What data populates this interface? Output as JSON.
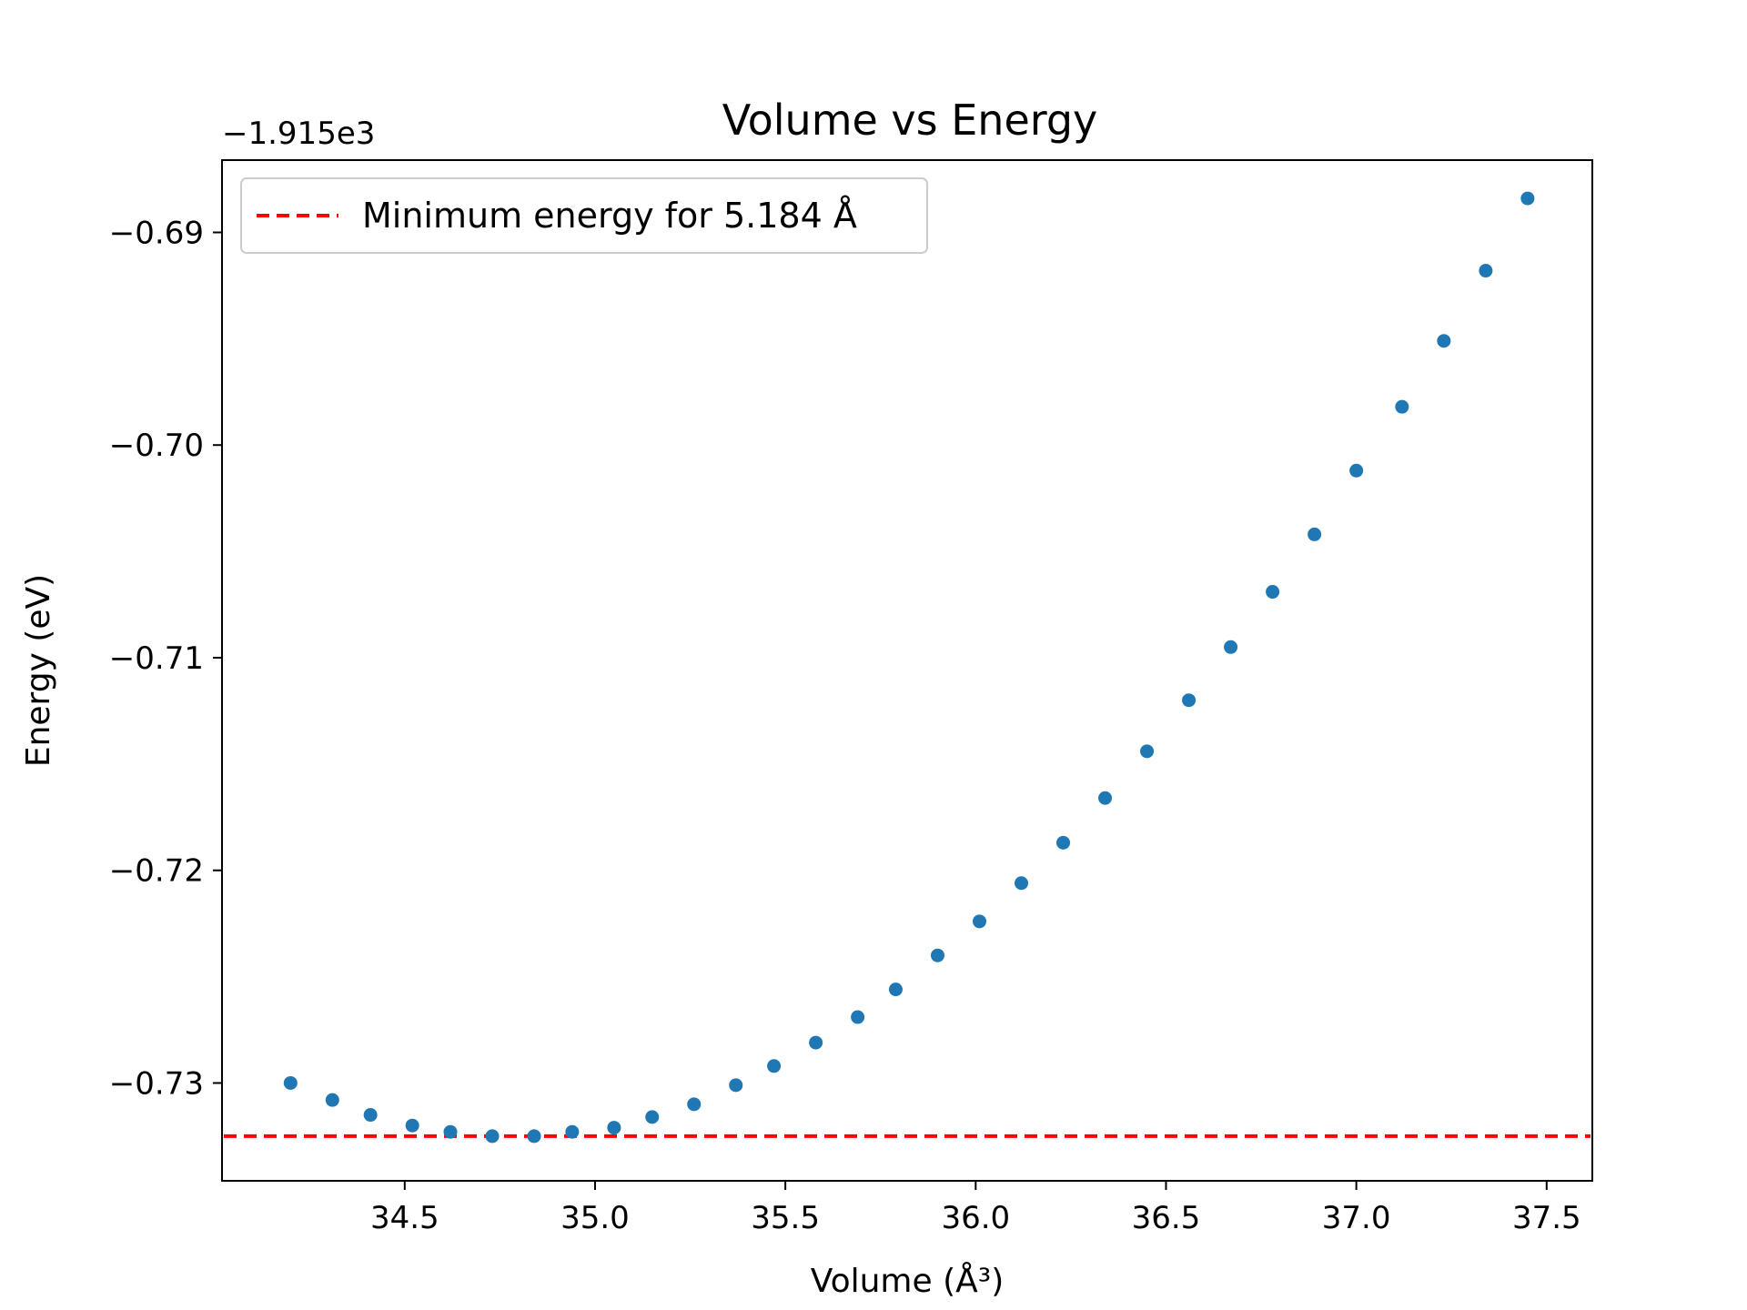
{
  "chart_data": {
    "type": "scatter",
    "title": "Volume vs Energy",
    "xlabel": "Volume (Å³)",
    "ylabel": "Energy (eV)",
    "offset_text": "−1.915e3",
    "y_offset": -1915,
    "xlim": [
      34.02,
      37.62
    ],
    "ylim": [
      -0.7346,
      -0.6866
    ],
    "x_ticks": [
      34.5,
      35.0,
      35.5,
      36.0,
      36.5,
      37.0,
      37.5
    ],
    "x_tick_labels": [
      "34.5",
      "35.0",
      "35.5",
      "36.0",
      "36.5",
      "37.0",
      "37.5"
    ],
    "y_ticks": [
      -0.69,
      -0.7,
      -0.71,
      -0.72,
      -0.73
    ],
    "y_tick_labels": [
      "−0.69",
      "−0.70",
      "−0.71",
      "−0.72",
      "−0.73"
    ],
    "grid": false,
    "legend_position": "top-left",
    "series": [
      {
        "kind": "scatter",
        "color": "#1f77b4",
        "x": [
          34.2,
          34.31,
          34.41,
          34.52,
          34.62,
          34.73,
          34.84,
          34.94,
          35.05,
          35.15,
          35.26,
          35.37,
          35.47,
          35.58,
          35.69,
          35.79,
          35.9,
          36.01,
          36.12,
          36.23,
          36.34,
          36.45,
          36.56,
          36.67,
          36.78,
          36.89,
          37.0,
          37.12,
          37.23,
          37.34,
          37.45
        ],
        "y": [
          -0.73,
          -0.7308,
          -0.7315,
          -0.732,
          -0.7323,
          -0.7325,
          -0.7325,
          -0.7323,
          -0.7321,
          -0.7316,
          -0.731,
          -0.7301,
          -0.7292,
          -0.7281,
          -0.7269,
          -0.7256,
          -0.724,
          -0.7224,
          -0.7206,
          -0.7187,
          -0.7166,
          -0.7144,
          -0.712,
          -0.7095,
          -0.7069,
          -0.7042,
          -0.7012,
          -0.6982,
          -0.6951,
          -0.6918,
          -0.6884
        ]
      },
      {
        "kind": "hline",
        "name": "Minimum energy for 5.184 Å",
        "color": "#ff0000",
        "style": "dashed",
        "y": -0.7325
      }
    ]
  }
}
